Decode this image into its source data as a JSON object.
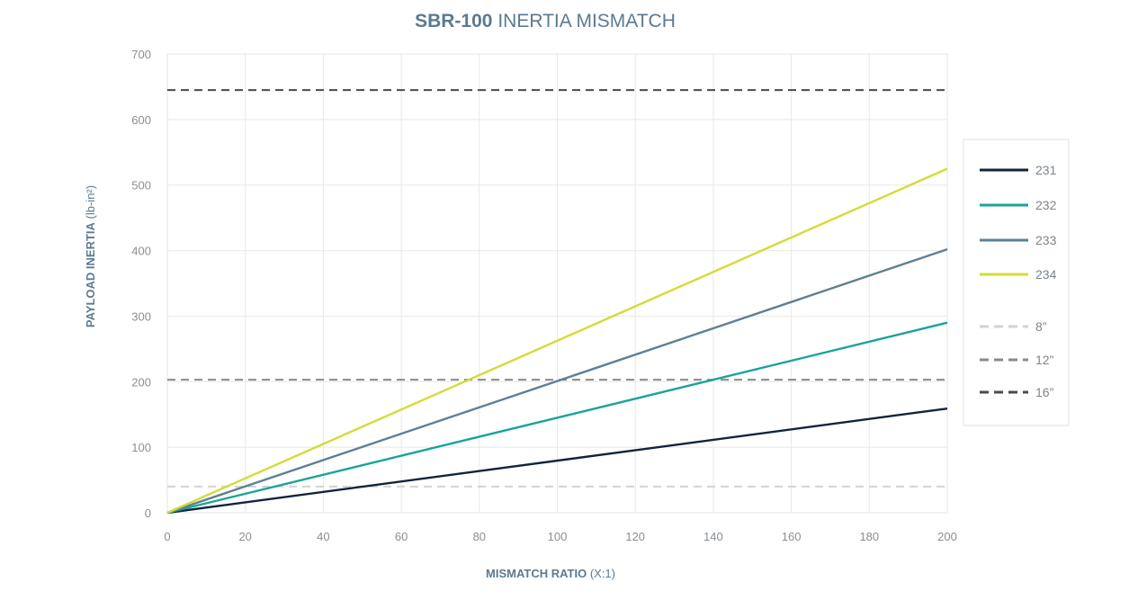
{
  "chart_data": {
    "type": "line",
    "title_bold": "SBR-100",
    "title_rest": "INERTIA MISMATCH",
    "xlabel_bold": "MISMATCH RATIO",
    "xlabel_rest": "(X:1)",
    "ylabel_bold": "PAYLOAD INERTIA",
    "ylabel_rest": "(lb-in²)",
    "xlim": [
      0,
      200
    ],
    "ylim": [
      0,
      700
    ],
    "x_ticks": [
      0,
      20,
      40,
      60,
      80,
      100,
      120,
      140,
      160,
      180,
      200
    ],
    "y_ticks": [
      0,
      100,
      200,
      300,
      400,
      500,
      600,
      700
    ],
    "grid": true,
    "legend_position": "right",
    "series": [
      {
        "name": "231",
        "color": "#13223f",
        "x": [
          0,
          200
        ],
        "y": [
          0,
          159
        ]
      },
      {
        "name": "232",
        "color": "#1aa39a",
        "x": [
          0,
          200
        ],
        "y": [
          0,
          290
        ]
      },
      {
        "name": "233",
        "color": "#5e7f94",
        "x": [
          0,
          200
        ],
        "y": [
          0,
          402
        ]
      },
      {
        "name": "234",
        "color": "#d4dc35",
        "x": [
          0,
          200
        ],
        "y": [
          0,
          525
        ]
      }
    ],
    "reference_lines": [
      {
        "name": "8”",
        "color": "#d3d3d3",
        "y": 40
      },
      {
        "name": "12”",
        "color": "#8a8a8a",
        "y": 203
      },
      {
        "name": "16”",
        "color": "#4a4a4a",
        "y": 645
      }
    ]
  }
}
